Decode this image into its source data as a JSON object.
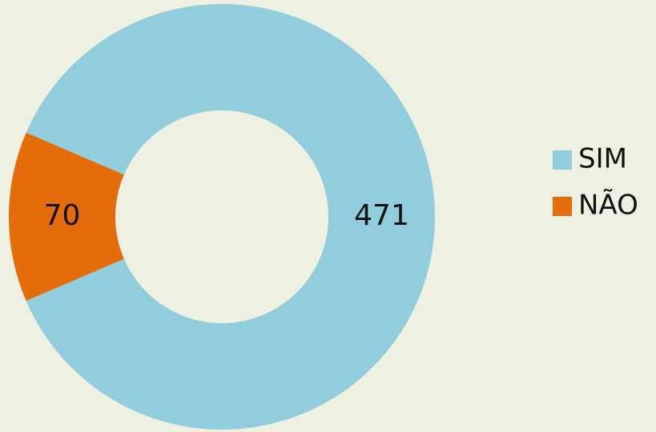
{
  "chart_data": {
    "type": "donut",
    "categories": [
      "SIM",
      "NÃO"
    ],
    "values": [
      471,
      70
    ],
    "colors": [
      "#92cddd",
      "#e46c0a"
    ],
    "legend": "right"
  }
}
